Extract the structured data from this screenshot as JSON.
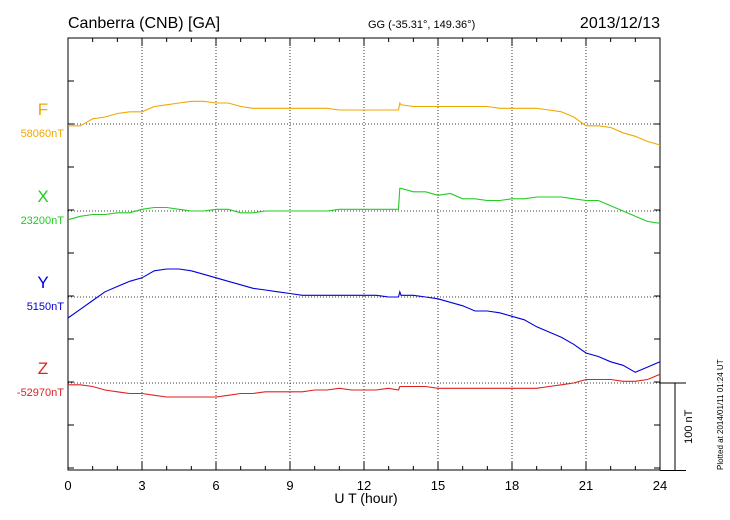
{
  "chart_data": {
    "type": "line",
    "title": "Canberra (CNB)  [GA]",
    "subtitle": "GG (-35.31°, 149.36°)",
    "date": "2013/12/13",
    "xlabel": "U T (hour)",
    "xlim": [
      0,
      24
    ],
    "xticks": [
      "0",
      "3",
      "6",
      "9",
      "12",
      "15",
      "18",
      "21",
      "24"
    ],
    "grid": true,
    "scale_bar": {
      "label": "100 nT",
      "value_nT": 100
    },
    "side_note": "Plotted at 2014/01/11 01:24 UT",
    "series": [
      {
        "name": "F",
        "baseline_label": "58060nT",
        "baseline_nT": 58060,
        "color": "#f0a800",
        "x": [
          0,
          0.5,
          1,
          1.5,
          2,
          2.5,
          3,
          3.5,
          4,
          4.5,
          5,
          5.5,
          6,
          6.5,
          7,
          7.5,
          8,
          8.5,
          9,
          9.5,
          10,
          10.5,
          11,
          11.5,
          12,
          12.5,
          13,
          13.4,
          13.45,
          13.5,
          14,
          14.5,
          15,
          15.5,
          16,
          16.5,
          17,
          17.5,
          18,
          18.5,
          19,
          19.5,
          20,
          20.5,
          21,
          21.5,
          22,
          22.5,
          23,
          23.5,
          24
        ],
        "values": [
          58058,
          58058,
          58066,
          58068,
          58072,
          58074,
          58074,
          58080,
          58082,
          58084,
          58086,
          58086,
          58084,
          58084,
          58080,
          58078,
          58078,
          58078,
          58078,
          58078,
          58078,
          58078,
          58076,
          58076,
          58076,
          58076,
          58076,
          58076,
          58084,
          58082,
          58080,
          58080,
          58080,
          58080,
          58080,
          58080,
          58080,
          58078,
          58078,
          58078,
          58078,
          58076,
          58074,
          58068,
          58058,
          58058,
          58056,
          58050,
          58046,
          58040,
          58036
        ]
      },
      {
        "name": "X",
        "baseline_label": "23200nT",
        "baseline_nT": 23200,
        "color": "#22cc22",
        "x": [
          0,
          0.5,
          1,
          1.5,
          2,
          2.5,
          3,
          3.5,
          4,
          4.5,
          5,
          5.5,
          6,
          6.5,
          7,
          7.5,
          8,
          8.5,
          9,
          9.5,
          10,
          10.5,
          11,
          11.5,
          12,
          12.5,
          13,
          13.4,
          13.45,
          13.5,
          14,
          14.5,
          15,
          15.5,
          16,
          16.5,
          17,
          17.5,
          18,
          18.5,
          19,
          19.5,
          20,
          20.5,
          21,
          21.5,
          22,
          22.5,
          23,
          23.5,
          24
        ],
        "values": [
          23190,
          23194,
          23196,
          23196,
          23198,
          23198,
          23202,
          23204,
          23204,
          23202,
          23200,
          23200,
          23202,
          23202,
          23198,
          23198,
          23200,
          23200,
          23200,
          23200,
          23200,
          23200,
          23202,
          23202,
          23202,
          23202,
          23202,
          23202,
          23226,
          23226,
          23222,
          23222,
          23218,
          23220,
          23214,
          23214,
          23212,
          23212,
          23214,
          23214,
          23216,
          23216,
          23216,
          23214,
          23212,
          23212,
          23206,
          23200,
          23194,
          23188,
          23186
        ]
      },
      {
        "name": "Y",
        "baseline_label": "5150nT",
        "baseline_nT": 5150,
        "color": "#0000dd",
        "x": [
          0,
          0.5,
          1,
          1.5,
          2,
          2.5,
          3,
          3.5,
          4,
          4.5,
          5,
          5.5,
          6,
          6.5,
          7,
          7.5,
          8,
          8.5,
          9,
          9.5,
          10,
          10.5,
          11,
          11.5,
          12,
          12.5,
          13,
          13.4,
          13.45,
          13.5,
          14,
          14.5,
          15,
          15.5,
          16,
          16.5,
          17,
          17.5,
          18,
          18.5,
          19,
          19.5,
          20,
          20.5,
          21,
          21.5,
          22,
          22.5,
          23,
          23.5,
          24
        ],
        "values": [
          5126,
          5136,
          5146,
          5156,
          5162,
          5168,
          5172,
          5180,
          5182,
          5182,
          5180,
          5176,
          5172,
          5168,
          5164,
          5160,
          5158,
          5156,
          5154,
          5152,
          5152,
          5152,
          5152,
          5152,
          5152,
          5152,
          5150,
          5150,
          5156,
          5152,
          5152,
          5150,
          5148,
          5144,
          5140,
          5134,
          5134,
          5132,
          5128,
          5124,
          5116,
          5110,
          5104,
          5096,
          5086,
          5082,
          5076,
          5072,
          5064,
          5070,
          5076
        ]
      },
      {
        "name": "Z",
        "baseline_label": "-52970nT",
        "baseline_nT": -52970,
        "color": "#dd2222",
        "x": [
          0,
          0.5,
          1,
          1.5,
          2,
          2.5,
          3,
          3.5,
          4,
          4.5,
          5,
          5.5,
          6,
          6.5,
          7,
          7.5,
          8,
          8.5,
          9,
          9.5,
          10,
          10.5,
          11,
          11.5,
          12,
          12.5,
          13,
          13.4,
          13.45,
          13.5,
          14,
          14.5,
          15,
          15.5,
          16,
          16.5,
          17,
          17.5,
          18,
          18.5,
          19,
          19.5,
          20,
          20.5,
          21,
          21.5,
          22,
          22.5,
          23,
          23.5,
          24
        ],
        "values": [
          -52972,
          -52972,
          -52974,
          -52978,
          -52980,
          -52982,
          -52982,
          -52984,
          -52986,
          -52986,
          -52986,
          -52986,
          -52986,
          -52984,
          -52982,
          -52982,
          -52980,
          -52980,
          -52980,
          -52980,
          -52978,
          -52978,
          -52976,
          -52978,
          -52978,
          -52978,
          -52976,
          -52978,
          -52974,
          -52974,
          -52974,
          -52974,
          -52976,
          -52976,
          -52976,
          -52976,
          -52976,
          -52976,
          -52976,
          -52976,
          -52976,
          -52974,
          -52972,
          -52970,
          -52966,
          -52966,
          -52966,
          -52968,
          -52968,
          -52966,
          -52960
        ]
      }
    ]
  }
}
